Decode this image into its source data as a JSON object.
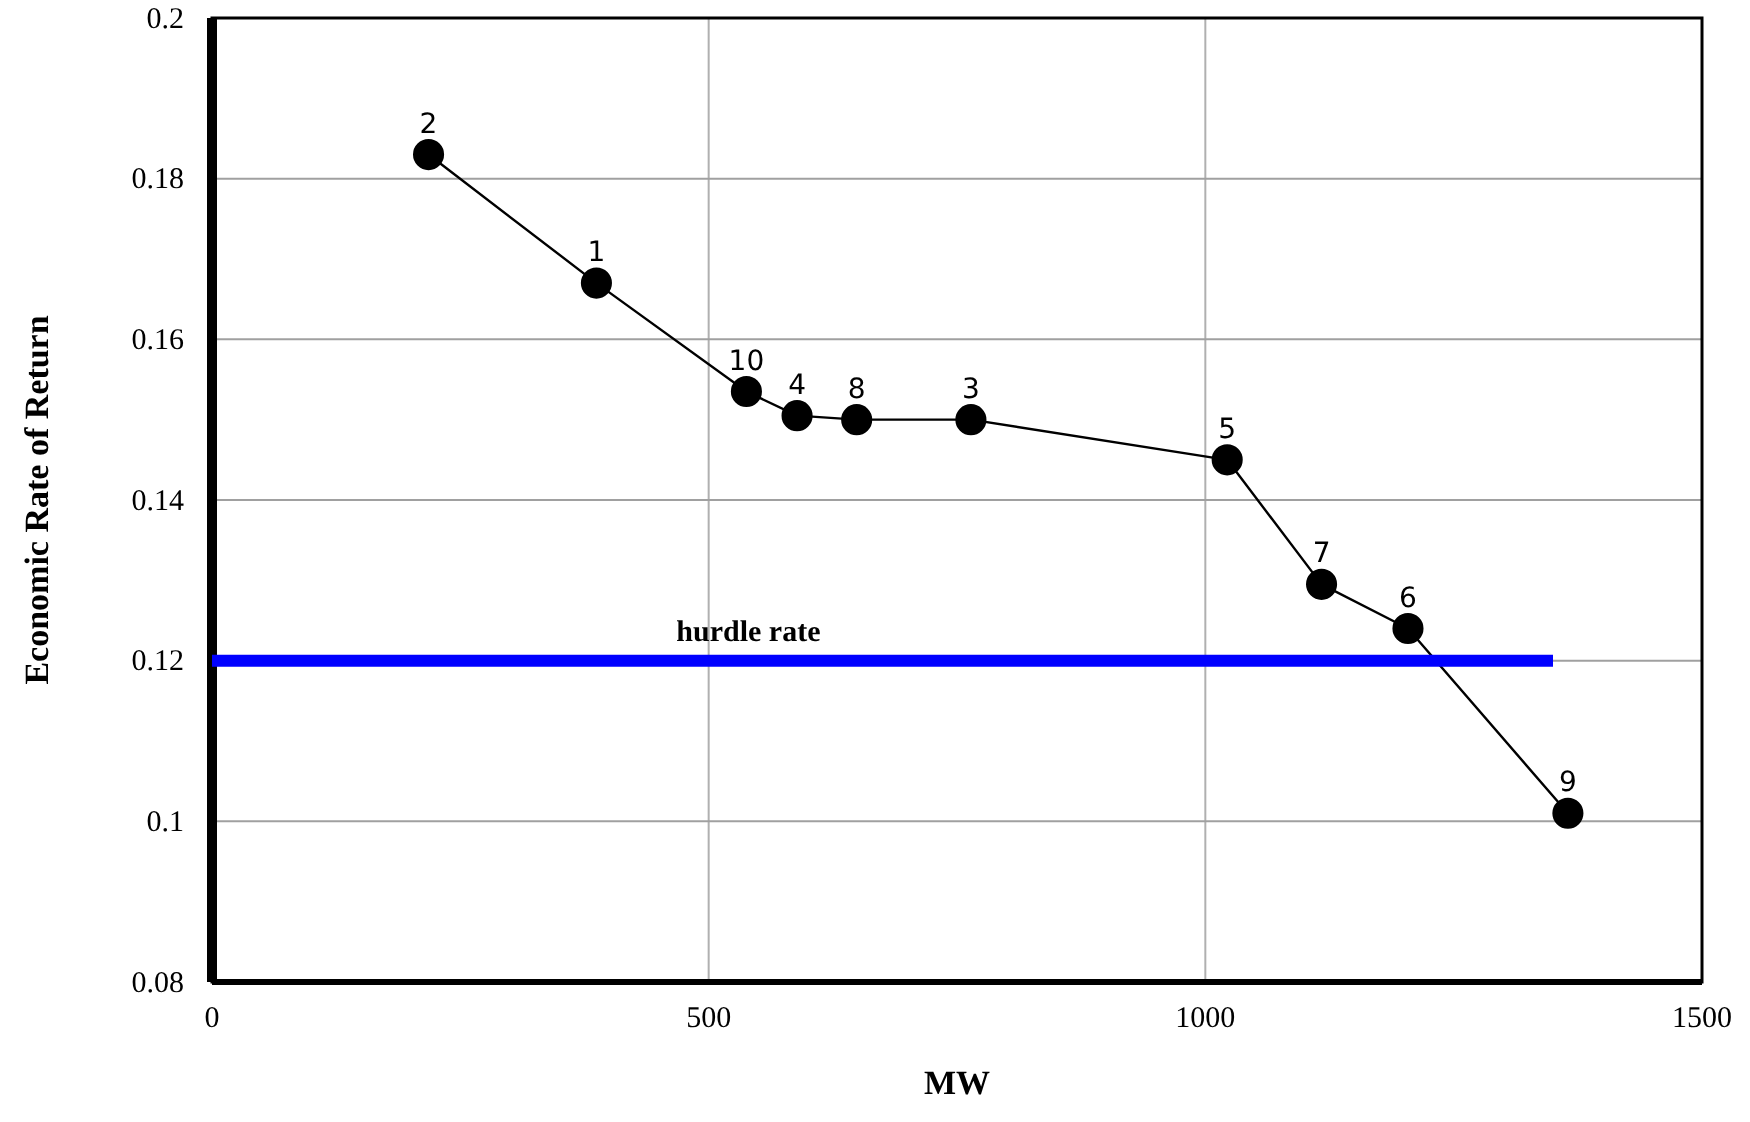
{
  "chart_data": {
    "type": "line",
    "xlabel": "MW",
    "ylabel": "Economic Rate of Return",
    "xlim": [
      0,
      1500
    ],
    "xticks": [
      0,
      500,
      1000,
      1500
    ],
    "ylim": [
      0.08,
      0.2
    ],
    "yticks": [
      {
        "value": 0.08,
        "label": "0.08"
      },
      {
        "value": 0.1,
        "label": "0.1"
      },
      {
        "value": 0.12,
        "label": "0.12"
      },
      {
        "value": 0.14,
        "label": "0.14"
      },
      {
        "value": 0.16,
        "label": "0.16"
      },
      {
        "value": 0.18,
        "label": "0.18"
      },
      {
        "value": 0.2,
        "label": "0.2"
      }
    ],
    "grid": true,
    "legend": false,
    "marker": "circle",
    "line_style": "solid",
    "series": [
      {
        "color": "#000000",
        "x": [
          218,
          387,
          538,
          589,
          649,
          764,
          1022,
          1117,
          1204,
          1365
        ],
        "values": [
          0.183,
          0.167,
          0.1535,
          0.1505,
          0.15,
          0.15,
          0.145,
          0.1295,
          0.124,
          0.101
        ]
      },
      {
        "name": "hurdle rate",
        "color": "#0000ff",
        "marker": "none",
        "x": [
          0,
          1350
        ],
        "values": [
          0.12,
          0.12
        ]
      }
    ],
    "annotations": [
      {
        "text": "2",
        "x": 218,
        "y": 0.183
      },
      {
        "text": "1",
        "x": 387,
        "y": 0.167
      },
      {
        "text": "10",
        "x": 538,
        "y": 0.1535
      },
      {
        "text": "4",
        "x": 589,
        "y": 0.1505
      },
      {
        "text": "8",
        "x": 649,
        "y": 0.15
      },
      {
        "text": "3",
        "x": 764,
        "y": 0.15
      },
      {
        "text": "5",
        "x": 1022,
        "y": 0.145
      },
      {
        "text": "7",
        "x": 1117,
        "y": 0.1295
      },
      {
        "text": "6",
        "x": 1204,
        "y": 0.124
      },
      {
        "text": "9",
        "x": 1365,
        "y": 0.101
      }
    ]
  }
}
